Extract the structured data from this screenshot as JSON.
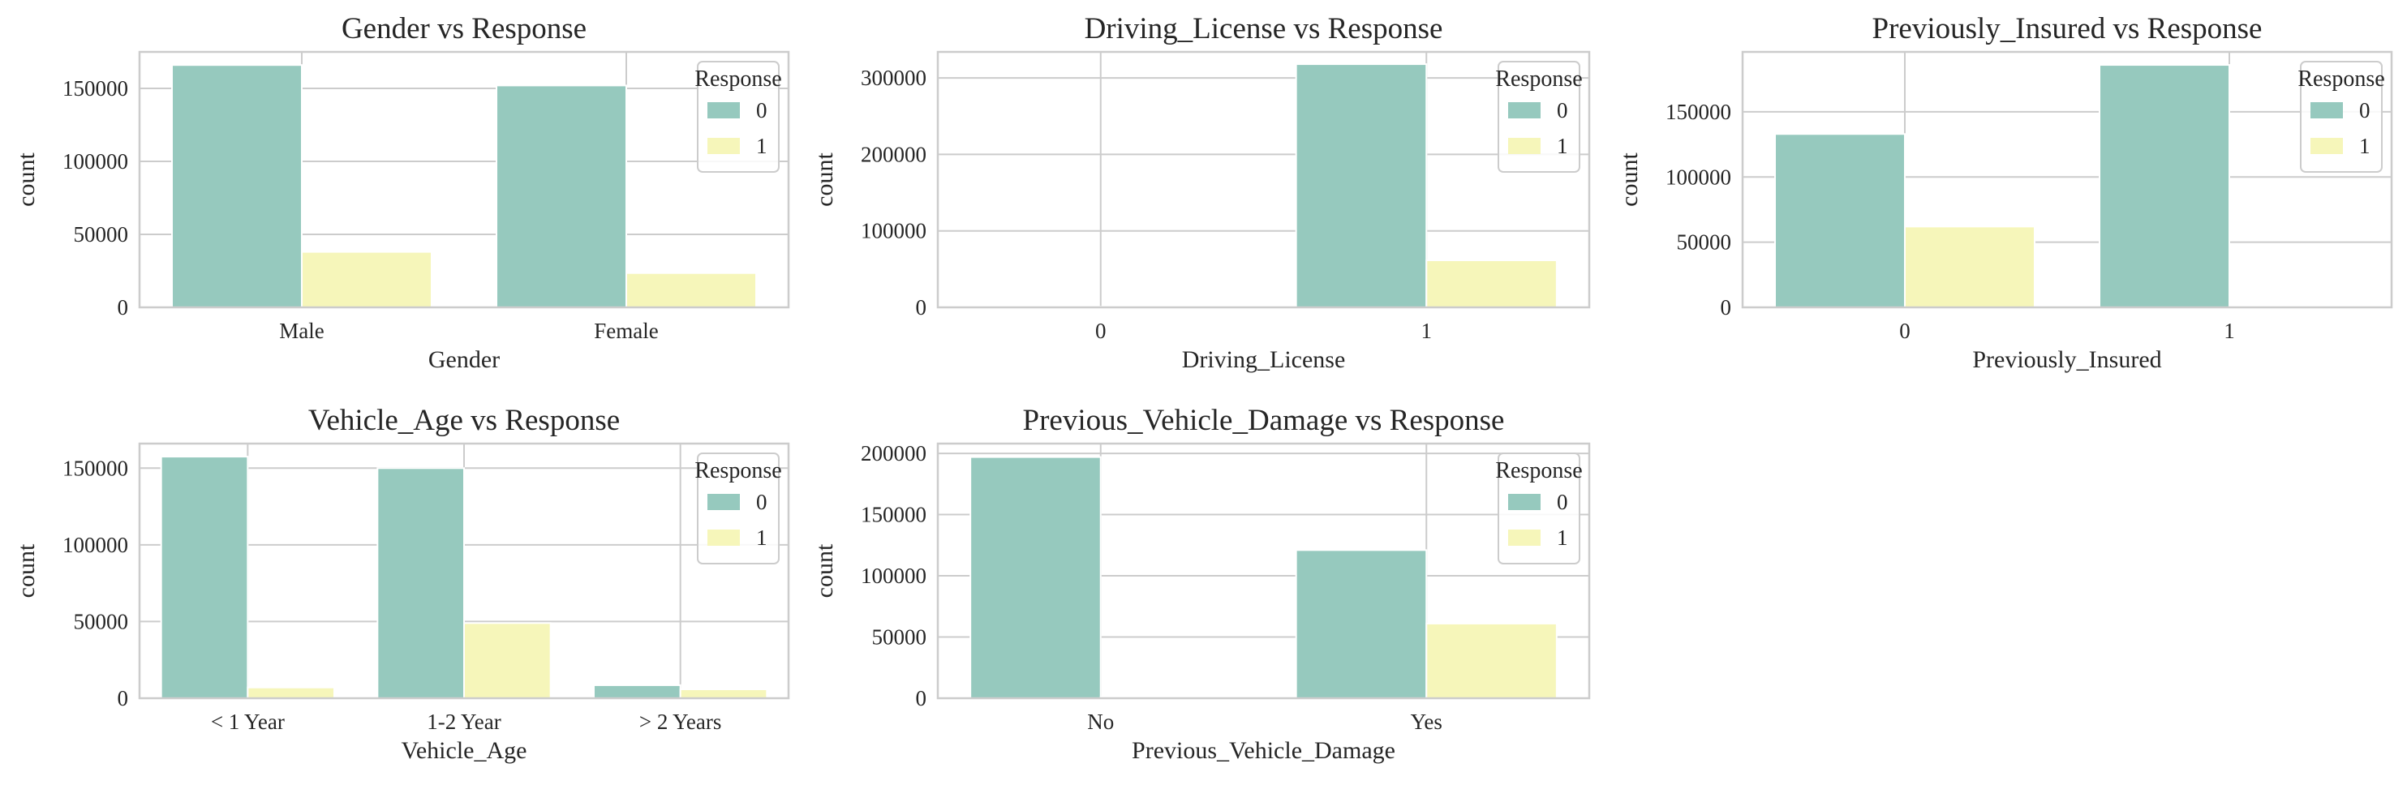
{
  "legend_title": "Response",
  "colors": {
    "0": "#96c9be",
    "1": "#f6f6ba"
  },
  "chart_data": [
    {
      "type": "bar",
      "title": "Gender vs Response",
      "xlabel": "Gender",
      "ylabel": "count",
      "categories": [
        "Male",
        "Female"
      ],
      "series": [
        {
          "name": "0",
          "values": [
            166000,
            152000
          ]
        },
        {
          "name": "1",
          "values": [
            38000,
            23500
          ]
        }
      ],
      "ylim": [
        0,
        175000
      ],
      "yticks": [
        0,
        50000,
        100000,
        150000
      ],
      "legend": "top-right",
      "grid": "y"
    },
    {
      "type": "bar",
      "title": "Driving_License vs Response",
      "xlabel": "Driving_License",
      "ylabel": "count",
      "categories": [
        "0",
        "1"
      ],
      "series": [
        {
          "name": "0",
          "values": [
            800,
            318000
          ]
        },
        {
          "name": "1",
          "values": [
            40,
            61500
          ]
        }
      ],
      "ylim": [
        0,
        334000
      ],
      "yticks": [
        0,
        100000,
        200000,
        300000
      ],
      "legend": "top-right",
      "grid": "y"
    },
    {
      "type": "bar",
      "title": "Previously_Insured vs Response",
      "xlabel": "Previously_Insured",
      "ylabel": "count",
      "categories": [
        "0",
        "1"
      ],
      "series": [
        {
          "name": "0",
          "values": [
            133000,
            186000
          ]
        },
        {
          "name": "1",
          "values": [
            62000,
            160
          ]
        }
      ],
      "ylim": [
        0,
        196000
      ],
      "yticks": [
        0,
        50000,
        100000,
        150000
      ],
      "legend": "top-right",
      "grid": "y"
    },
    {
      "type": "bar",
      "title": "Vehicle_Age vs Response",
      "xlabel": "Vehicle_Age",
      "ylabel": "count",
      "categories": [
        "< 1 Year",
        "1-2 Year",
        "> 2 Years"
      ],
      "series": [
        {
          "name": "0",
          "values": [
            157500,
            150000,
            8500
          ]
        },
        {
          "name": "1",
          "values": [
            7000,
            49000,
            5800
          ]
        }
      ],
      "ylim": [
        0,
        166000
      ],
      "yticks": [
        0,
        50000,
        100000,
        150000
      ],
      "legend": "top-right",
      "grid": "y"
    },
    {
      "type": "bar",
      "title": "Previous_Vehicle_Damage vs Response",
      "xlabel": "Previous_Vehicle_Damage",
      "ylabel": "count",
      "categories": [
        "No",
        "Yes"
      ],
      "series": [
        {
          "name": "0",
          "values": [
            197000,
            121000
          ]
        },
        {
          "name": "1",
          "values": [
            1000,
            61000
          ]
        }
      ],
      "ylim": [
        0,
        208000
      ],
      "yticks": [
        0,
        50000,
        100000,
        150000,
        200000
      ],
      "legend": "top-right",
      "grid": "y"
    }
  ]
}
